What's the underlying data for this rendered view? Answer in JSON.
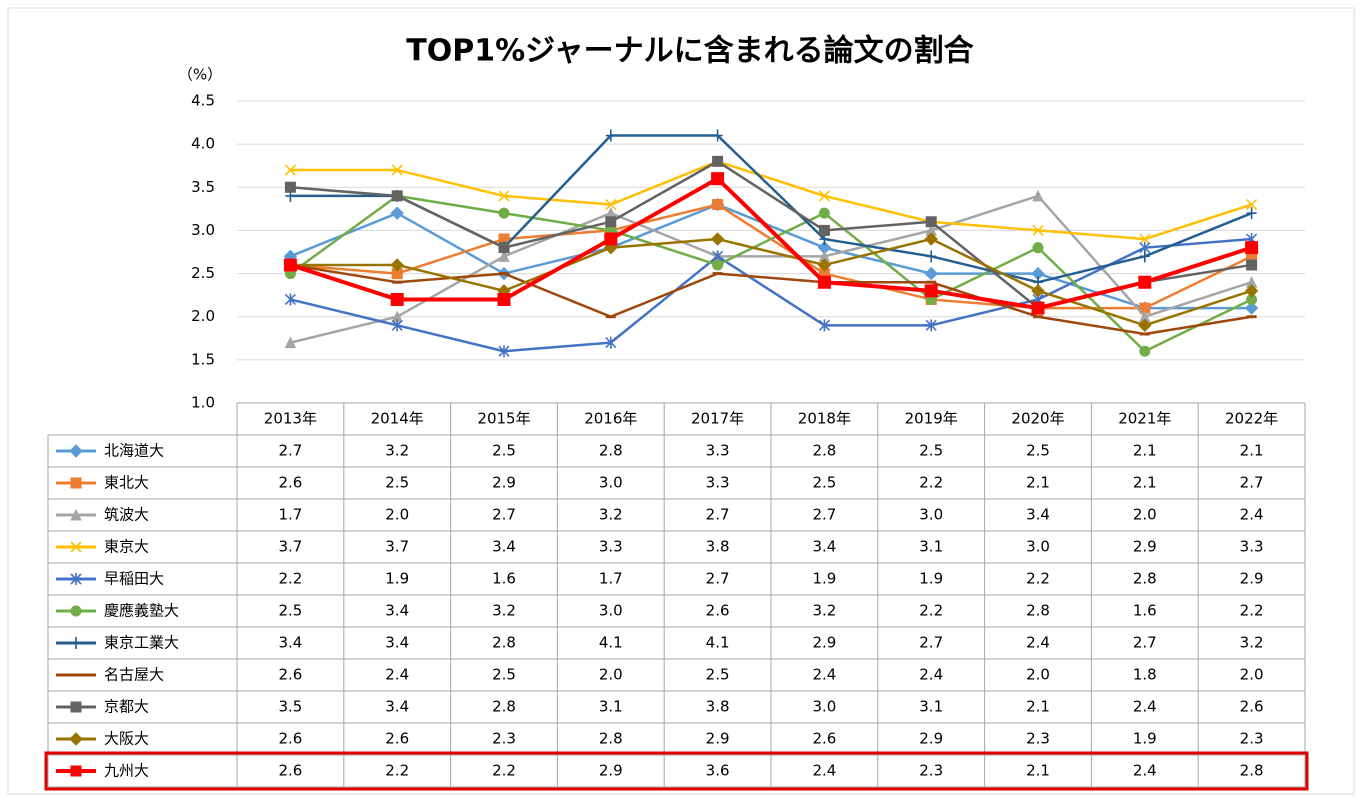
{
  "chart_data": {
    "type": "line",
    "title": "TOP1%ジャーナルに含まれる論文の割合",
    "y_label": "（%）",
    "categories": [
      "2013年",
      "2014年",
      "2015年",
      "2016年",
      "2017年",
      "2018年",
      "2019年",
      "2020年",
      "2021年",
      "2022年"
    ],
    "ylim": [
      1.0,
      4.5
    ],
    "yticks": [
      {
        "value": 1,
        "label": "1.0"
      },
      1.5,
      {
        "value": 2,
        "label": "2.0"
      },
      2.5,
      {
        "value": 3,
        "label": "3.0"
      },
      3.5,
      {
        "value": 4,
        "label": "4.0"
      },
      4.5
    ],
    "grid": true,
    "data_table": true,
    "series": [
      {
        "name": "北海道大",
        "color": "#5b9bd5",
        "marker": "diamond",
        "values": [
          2.7,
          3.2,
          2.5,
          2.8,
          3.3,
          2.8,
          2.5,
          2.5,
          2.1,
          2.1
        ],
        "value_labels": [
          "2.7",
          "3.2",
          "2.5",
          "2.8",
          "3.3",
          "2.8",
          "2.5",
          "2.5",
          "2.1",
          "2.1"
        ]
      },
      {
        "name": "東北大",
        "color": "#ed7d31",
        "marker": "square",
        "values": [
          2.6,
          2.5,
          2.9,
          3.0,
          3.3,
          2.5,
          2.2,
          2.1,
          2.1,
          2.7
        ],
        "value_labels": [
          "2.6",
          "2.5",
          "2.9",
          "3.0",
          "3.3",
          "2.5",
          "2.2",
          "2.1",
          "2.1",
          "2.7"
        ]
      },
      {
        "name": "筑波大",
        "color": "#a5a5a5",
        "marker": "triangle",
        "values": [
          1.7,
          2.0,
          2.7,
          3.2,
          2.7,
          2.7,
          3.0,
          3.4,
          2.0,
          2.4
        ],
        "value_labels": [
          "1.7",
          "2.0",
          "2.7",
          "3.2",
          "2.7",
          "2.7",
          "3.0",
          "3.4",
          "2.0",
          "2.4"
        ]
      },
      {
        "name": "東京大",
        "color": "#ffc000",
        "marker": "x",
        "values": [
          3.7,
          3.7,
          3.4,
          3.3,
          3.8,
          3.4,
          3.1,
          3.0,
          2.9,
          3.3
        ],
        "value_labels": [
          "3.7",
          "3.7",
          "3.4",
          "3.3",
          "3.8",
          "3.4",
          "3.1",
          "3.0",
          "2.9",
          "3.3"
        ]
      },
      {
        "name": "早稲田大",
        "color": "#4472c4",
        "marker": "asterisk",
        "values": [
          2.2,
          1.9,
          1.6,
          1.7,
          2.7,
          1.9,
          1.9,
          2.2,
          2.8,
          2.9
        ],
        "value_labels": [
          "2.2",
          "1.9",
          "1.6",
          "1.7",
          "2.7",
          "1.9",
          "1.9",
          "2.2",
          "2.8",
          "2.9"
        ]
      },
      {
        "name": "慶應義塾大",
        "color": "#70ad47",
        "marker": "circle",
        "values": [
          2.5,
          3.4,
          3.2,
          3.0,
          2.6,
          3.2,
          2.2,
          2.8,
          1.6,
          2.2
        ],
        "value_labels": [
          "2.5",
          "3.4",
          "3.2",
          "3.0",
          "2.6",
          "3.2",
          "2.2",
          "2.8",
          "1.6",
          "2.2"
        ]
      },
      {
        "name": "東京工業大",
        "color": "#255e91",
        "marker": "plus",
        "values": [
          3.4,
          3.4,
          2.8,
          4.1,
          4.1,
          2.9,
          2.7,
          2.4,
          2.7,
          3.2
        ],
        "value_labels": [
          "3.4",
          "3.4",
          "2.8",
          "4.1",
          "4.1",
          "2.9",
          "2.7",
          "2.4",
          "2.7",
          "3.2"
        ]
      },
      {
        "name": "名古屋大",
        "color": "#9e480e",
        "marker": "dash",
        "values": [
          2.6,
          2.4,
          2.5,
          2.0,
          2.5,
          2.4,
          2.4,
          2.0,
          1.8,
          2.0
        ],
        "value_labels": [
          "2.6",
          "2.4",
          "2.5",
          "2.0",
          "2.5",
          "2.4",
          "2.4",
          "2.0",
          "1.8",
          "2.0"
        ]
      },
      {
        "name": "京都大",
        "color": "#636363",
        "marker": "square",
        "values": [
          3.5,
          3.4,
          2.8,
          3.1,
          3.8,
          3.0,
          3.1,
          2.1,
          2.4,
          2.6
        ],
        "value_labels": [
          "3.5",
          "3.4",
          "2.8",
          "3.1",
          "3.8",
          "3.0",
          "3.1",
          "2.1",
          "2.4",
          "2.6"
        ]
      },
      {
        "name": "大阪大",
        "color": "#997300",
        "marker": "diamond",
        "values": [
          2.6,
          2.6,
          2.3,
          2.8,
          2.9,
          2.6,
          2.9,
          2.3,
          1.9,
          2.3
        ],
        "value_labels": [
          "2.6",
          "2.6",
          "2.3",
          "2.8",
          "2.9",
          "2.6",
          "2.9",
          "2.3",
          "1.9",
          "2.3"
        ]
      },
      {
        "name": "九州大",
        "color": "#ff0000",
        "marker": "square",
        "highlight": true,
        "values": [
          2.6,
          2.2,
          2.2,
          2.9,
          3.6,
          2.4,
          2.3,
          2.1,
          2.4,
          2.8
        ],
        "value_labels": [
          "2.6",
          "2.2",
          "2.2",
          "2.9",
          "3.6",
          "2.4",
          "2.3",
          "2.1",
          "2.4",
          "2.8"
        ]
      }
    ]
  }
}
